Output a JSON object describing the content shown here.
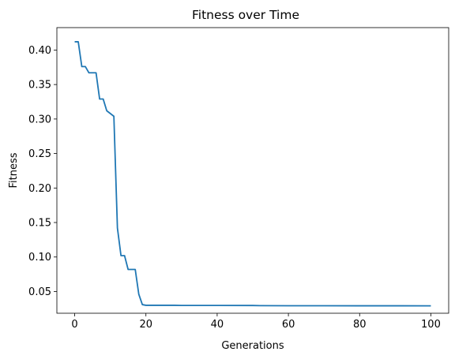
{
  "chart_data": {
    "type": "line",
    "title": "Fitness over Time",
    "xlabel": "Generations",
    "ylabel": "Fitness",
    "xlim": [
      -5,
      105
    ],
    "ylim": [
      0.0185,
      0.4325
    ],
    "xticks": [
      0,
      20,
      40,
      60,
      80,
      100
    ],
    "yticks": [
      0.05,
      0.1,
      0.15,
      0.2,
      0.25,
      0.3,
      0.35,
      0.4
    ],
    "ytick_labels": [
      "0.05",
      "0.10",
      "0.15",
      "0.20",
      "0.25",
      "0.30",
      "0.35",
      "0.40"
    ],
    "grid": false,
    "series": [
      {
        "color": "#1f77b4",
        "x": [
          0,
          1,
          2,
          3,
          4,
          5,
          6,
          7,
          8,
          9,
          10,
          11,
          12,
          13,
          14,
          15,
          16,
          17,
          18,
          19,
          20,
          25,
          28,
          30,
          40,
          50,
          52,
          60,
          70,
          80,
          90,
          100
        ],
        "y": [
          0.412,
          0.412,
          0.376,
          0.376,
          0.367,
          0.367,
          0.367,
          0.329,
          0.329,
          0.312,
          0.308,
          0.304,
          0.142,
          0.102,
          0.102,
          0.082,
          0.082,
          0.082,
          0.046,
          0.031,
          0.03,
          0.03,
          0.03,
          0.0298,
          0.0298,
          0.0297,
          0.0295,
          0.0294,
          0.0294,
          0.0293,
          0.0293,
          0.0292
        ]
      }
    ]
  }
}
